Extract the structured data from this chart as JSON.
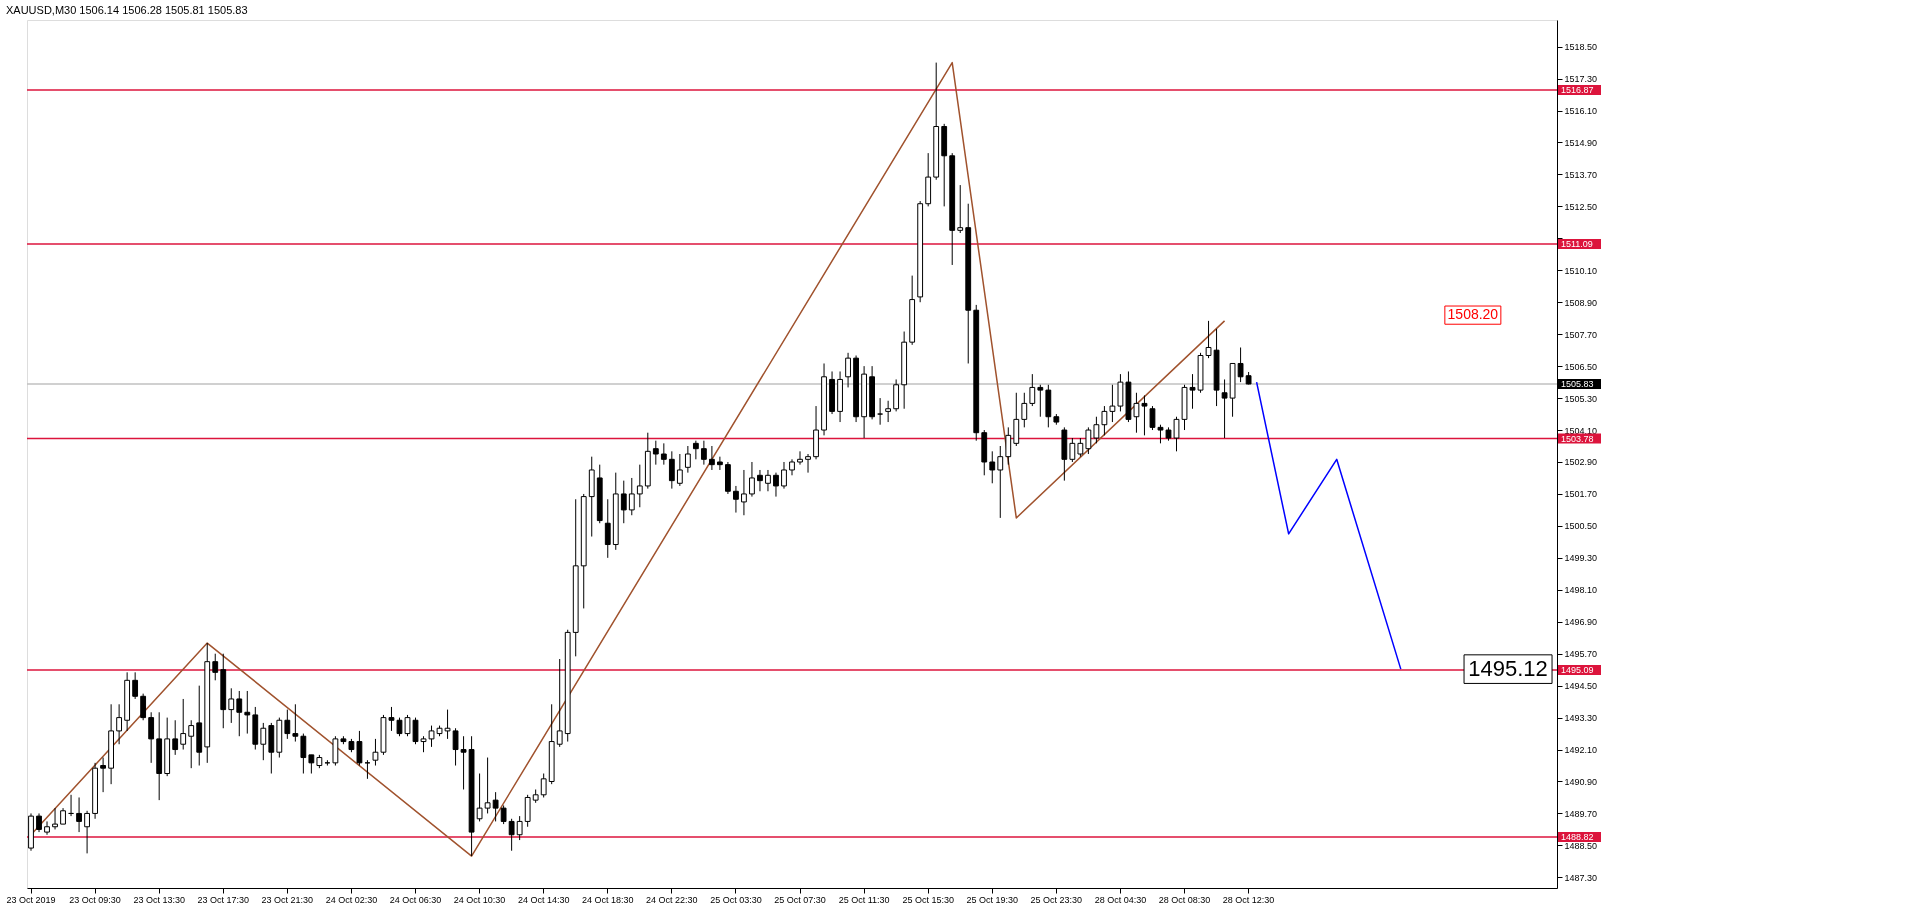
{
  "chart_data": {
    "type": "candlestick",
    "title": "XAUUSD,M30  1506.14 1506.28 1505.81 1505.83",
    "categories": [
      "23 Oct 2019",
      null,
      null,
      null,
      null,
      null,
      null,
      null,
      "23 Oct 09:30",
      null,
      null,
      null,
      null,
      null,
      null,
      null,
      "23 Oct 13:30",
      null,
      null,
      null,
      null,
      null,
      null,
      null,
      "23 Oct 17:30",
      null,
      null,
      null,
      null,
      null,
      null,
      null,
      "23 Oct 21:30",
      null,
      null,
      null,
      null,
      null,
      null,
      null,
      "24 Oct 02:30",
      null,
      null,
      null,
      null,
      null,
      null,
      null,
      "24 Oct 06:30",
      null,
      null,
      null,
      null,
      null,
      null,
      null,
      "24 Oct 10:30",
      null,
      null,
      null,
      null,
      null,
      null,
      null,
      "24 Oct 14:30",
      null,
      null,
      null,
      null,
      null,
      null,
      null,
      "24 Oct 18:30",
      null,
      null,
      null,
      null,
      null,
      null,
      null,
      "24 Oct 22:30",
      null,
      null,
      null,
      null,
      null,
      null,
      null,
      "25 Oct 03:30",
      null,
      null,
      null,
      null,
      null,
      null,
      null,
      "25 Oct 07:30",
      null,
      null,
      null,
      null,
      null,
      null,
      null,
      "25 Oct 11:30",
      null,
      null,
      null,
      null,
      null,
      null,
      null,
      "25 Oct 15:30",
      null,
      null,
      null,
      null,
      null,
      null,
      null,
      "25 Oct 19:30",
      null,
      null,
      null,
      null,
      null,
      null,
      null,
      "25 Oct 23:30",
      null,
      null,
      null,
      null,
      null,
      null,
      null,
      "28 Oct 04:30",
      null,
      null,
      null,
      null,
      null,
      null,
      null,
      "28 Oct 08:30",
      null,
      null,
      null,
      null,
      null,
      null,
      null,
      "28 Oct 12:30",
      null,
      null,
      null,
      null,
      null,
      null,
      null,
      null,
      null,
      null,
      null,
      null,
      null,
      null,
      null,
      null,
      null,
      null,
      null,
      null,
      null,
      null,
      null,
      null,
      null,
      null,
      null,
      null,
      null,
      null,
      null,
      null,
      null,
      null,
      null,
      null,
      null,
      null
    ],
    "ohlc": [
      [
        1488.4,
        1489.7,
        1488.3,
        1489.6
      ],
      [
        1489.6,
        1489.7,
        1489.0,
        1489.1
      ],
      [
        1489.0,
        1489.4,
        1488.9,
        1489.2
      ],
      [
        1489.2,
        1489.9,
        1489.1,
        1489.3
      ],
      [
        1489.3,
        1489.9,
        1489.3,
        1489.8
      ],
      [
        1489.7,
        1490.4,
        1489.6,
        1489.7
      ],
      [
        1489.7,
        1490.3,
        1489.0,
        1489.4
      ],
      [
        1489.2,
        1489.8,
        1488.2,
        1489.7
      ],
      [
        1489.7,
        1491.6,
        1489.5,
        1491.4
      ],
      [
        1491.5,
        1491.8,
        1490.5,
        1491.4
      ],
      [
        1491.4,
        1493.8,
        1490.8,
        1492.8
      ],
      [
        1492.8,
        1493.8,
        1492.3,
        1493.3
      ],
      [
        1493.2,
        1495.0,
        1492.8,
        1494.7
      ],
      [
        1494.7,
        1495.0,
        1494.0,
        1494.1
      ],
      [
        1494.1,
        1494.2,
        1493.2,
        1493.3
      ],
      [
        1493.3,
        1493.5,
        1491.6,
        1492.5
      ],
      [
        1492.5,
        1493.5,
        1490.2,
        1491.2
      ],
      [
        1491.2,
        1493.3,
        1491.1,
        1492.5
      ],
      [
        1492.5,
        1493.2,
        1491.9,
        1492.1
      ],
      [
        1492.3,
        1494.0,
        1492.1,
        1492.7
      ],
      [
        1492.6,
        1493.2,
        1491.4,
        1493.0
      ],
      [
        1493.1,
        1494.5,
        1491.5,
        1492.0
      ],
      [
        1492.2,
        1496.1,
        1491.6,
        1495.4
      ],
      [
        1495.4,
        1495.7,
        1494.7,
        1495.0
      ],
      [
        1495.1,
        1495.7,
        1492.9,
        1493.6
      ],
      [
        1493.6,
        1494.4,
        1493.1,
        1494.0
      ],
      [
        1494.0,
        1494.3,
        1492.6,
        1493.5
      ],
      [
        1493.5,
        1494.3,
        1492.7,
        1493.4
      ],
      [
        1493.4,
        1493.7,
        1492.1,
        1492.3
      ],
      [
        1492.3,
        1493.1,
        1491.7,
        1492.9
      ],
      [
        1493.0,
        1493.1,
        1491.2,
        1492.0
      ],
      [
        1492.0,
        1493.3,
        1491.8,
        1493.2
      ],
      [
        1493.2,
        1493.6,
        1492.5,
        1492.7
      ],
      [
        1492.7,
        1493.8,
        1492.4,
        1492.6
      ],
      [
        1492.6,
        1492.7,
        1491.2,
        1491.8
      ],
      [
        1491.9,
        1491.9,
        1491.2,
        1491.6
      ],
      [
        1491.5,
        1491.9,
        1491.4,
        1491.8
      ],
      [
        1491.6,
        1491.7,
        1491.5,
        1491.6
      ],
      [
        1491.6,
        1492.6,
        1491.5,
        1492.5
      ],
      [
        1492.5,
        1492.6,
        1492.3,
        1492.4
      ],
      [
        1492.4,
        1492.5,
        1492.0,
        1492.1
      ],
      [
        1492.4,
        1492.8,
        1491.5,
        1491.6
      ],
      [
        1491.6,
        1491.7,
        1491.0,
        1491.6
      ],
      [
        1491.7,
        1492.5,
        1491.5,
        1492.0
      ],
      [
        1492.0,
        1493.4,
        1491.9,
        1493.3
      ],
      [
        1493.3,
        1493.7,
        1492.8,
        1493.2
      ],
      [
        1493.2,
        1493.3,
        1492.6,
        1492.7
      ],
      [
        1492.7,
        1493.4,
        1492.6,
        1493.3
      ],
      [
        1493.2,
        1493.3,
        1492.3,
        1492.4
      ],
      [
        1492.4,
        1492.6,
        1492.0,
        1492.5
      ],
      [
        1492.5,
        1493.0,
        1492.2,
        1492.8
      ],
      [
        1492.7,
        1493.0,
        1492.6,
        1492.9
      ],
      [
        1492.8,
        1493.6,
        1492.5,
        1492.9
      ],
      [
        1492.8,
        1492.9,
        1491.5,
        1492.1
      ],
      [
        1492.1,
        1492.6,
        1490.6,
        1492.0
      ],
      [
        1492.1,
        1492.6,
        1488.1,
        1489.0
      ],
      [
        1489.5,
        1491.2,
        1489.4,
        1489.9
      ],
      [
        1489.9,
        1491.8,
        1489.7,
        1490.1
      ],
      [
        1490.2,
        1490.5,
        1489.4,
        1489.9
      ],
      [
        1489.9,
        1490.0,
        1489.3,
        1489.4
      ],
      [
        1489.4,
        1489.5,
        1488.3,
        1488.9
      ],
      [
        1488.9,
        1489.6,
        1488.7,
        1489.4
      ],
      [
        1489.4,
        1490.4,
        1489.2,
        1490.3
      ],
      [
        1490.2,
        1490.6,
        1490.1,
        1490.4
      ],
      [
        1490.4,
        1491.2,
        1490.3,
        1491.0
      ],
      [
        1490.9,
        1493.8,
        1490.8,
        1492.4
      ],
      [
        1492.3,
        1495.5,
        1492.2,
        1492.8
      ],
      [
        1492.7,
        1496.6,
        1492.4,
        1496.5
      ],
      [
        1496.5,
        1501.5,
        1495.6,
        1499.0
      ],
      [
        1499.0,
        1501.7,
        1497.4,
        1501.6
      ],
      [
        1501.6,
        1503.1,
        1500.1,
        1502.6
      ],
      [
        1502.3,
        1502.8,
        1500.6,
        1500.7
      ],
      [
        1500.6,
        1501.5,
        1499.3,
        1499.8
      ],
      [
        1499.8,
        1502.5,
        1499.6,
        1501.7
      ],
      [
        1501.7,
        1502.2,
        1500.6,
        1501.1
      ],
      [
        1501.1,
        1502.3,
        1500.9,
        1501.7
      ],
      [
        1501.7,
        1502.8,
        1501.2,
        1502.0
      ],
      [
        1502.0,
        1504.0,
        1501.9,
        1503.3
      ],
      [
        1503.4,
        1503.7,
        1502.8,
        1503.2
      ],
      [
        1503.2,
        1503.6,
        1502.8,
        1503.0
      ],
      [
        1503.0,
        1503.3,
        1501.9,
        1502.2
      ],
      [
        1502.1,
        1503.2,
        1502.0,
        1502.6
      ],
      [
        1502.7,
        1503.5,
        1502.5,
        1503.2
      ],
      [
        1503.6,
        1503.7,
        1503.0,
        1503.4
      ],
      [
        1503.4,
        1503.7,
        1502.8,
        1503.0
      ],
      [
        1503.0,
        1503.5,
        1502.6,
        1502.8
      ],
      [
        1502.9,
        1503.1,
        1502.6,
        1502.8
      ],
      [
        1502.8,
        1502.9,
        1501.7,
        1501.8
      ],
      [
        1501.8,
        1502.0,
        1501.0,
        1501.5
      ],
      [
        1501.4,
        1502.6,
        1500.9,
        1501.7
      ],
      [
        1501.7,
        1502.9,
        1501.6,
        1502.3
      ],
      [
        1502.4,
        1502.6,
        1501.8,
        1502.2
      ],
      [
        1502.1,
        1502.6,
        1501.8,
        1502.4
      ],
      [
        1502.4,
        1502.5,
        1501.6,
        1502.0
      ],
      [
        1502.0,
        1502.9,
        1501.9,
        1502.6
      ],
      [
        1502.6,
        1503.0,
        1502.4,
        1502.9
      ],
      [
        1502.9,
        1503.3,
        1502.8,
        1503.0
      ],
      [
        1503.0,
        1503.2,
        1502.5,
        1503.1
      ],
      [
        1503.1,
        1505.0,
        1503.0,
        1504.1
      ],
      [
        1504.1,
        1506.6,
        1503.9,
        1506.1
      ],
      [
        1506.0,
        1506.3,
        1504.7,
        1504.8
      ],
      [
        1504.8,
        1506.3,
        1504.4,
        1506.0
      ],
      [
        1506.1,
        1507.0,
        1505.7,
        1506.8
      ],
      [
        1506.8,
        1506.9,
        1504.4,
        1504.6
      ],
      [
        1504.6,
        1506.5,
        1503.8,
        1506.2
      ],
      [
        1506.1,
        1506.5,
        1504.5,
        1504.6
      ],
      [
        1504.7,
        1505.3,
        1504.3,
        1504.7
      ],
      [
        1504.8,
        1505.2,
        1504.4,
        1504.9
      ],
      [
        1504.9,
        1506.0,
        1504.8,
        1505.8
      ],
      [
        1505.8,
        1507.8,
        1504.9,
        1507.4
      ],
      [
        1507.4,
        1509.9,
        1507.3,
        1509.0
      ],
      [
        1509.1,
        1512.7,
        1508.9,
        1512.6
      ],
      [
        1512.6,
        1514.5,
        1512.5,
        1513.6
      ],
      [
        1513.6,
        1517.9,
        1513.5,
        1515.5
      ],
      [
        1515.5,
        1515.6,
        1512.5,
        1514.4
      ],
      [
        1514.4,
        1514.5,
        1510.3,
        1511.6
      ],
      [
        1511.6,
        1513.3,
        1511.5,
        1511.7
      ],
      [
        1511.7,
        1512.6,
        1506.6,
        1508.6
      ],
      [
        1508.6,
        1508.8,
        1503.7,
        1504.0
      ],
      [
        1504.0,
        1504.1,
        1502.4,
        1502.9
      ],
      [
        1502.9,
        1503.3,
        1502.1,
        1502.6
      ],
      [
        1502.6,
        1503.5,
        1500.8,
        1503.1
      ],
      [
        1503.1,
        1504.2,
        1502.8,
        1503.9
      ],
      [
        1503.6,
        1505.5,
        1503.5,
        1504.5
      ],
      [
        1504.5,
        1505.5,
        1504.2,
        1505.1
      ],
      [
        1505.1,
        1506.2,
        1505.0,
        1505.7
      ],
      [
        1505.7,
        1505.8,
        1504.6,
        1505.6
      ],
      [
        1505.6,
        1505.8,
        1504.2,
        1504.6
      ],
      [
        1504.6,
        1504.7,
        1504.3,
        1504.4
      ],
      [
        1504.1,
        1504.2,
        1502.2,
        1503.0
      ],
      [
        1503.0,
        1503.8,
        1502.9,
        1503.6
      ],
      [
        1503.2,
        1503.8,
        1503.1,
        1503.6
      ],
      [
        1503.4,
        1504.2,
        1503.2,
        1504.1
      ],
      [
        1503.8,
        1504.6,
        1503.6,
        1504.3
      ],
      [
        1504.3,
        1505.0,
        1503.9,
        1504.8
      ],
      [
        1504.8,
        1505.8,
        1504.4,
        1505.0
      ],
      [
        1505.0,
        1506.2,
        1504.8,
        1505.9
      ],
      [
        1505.9,
        1506.3,
        1504.4,
        1504.5
      ],
      [
        1504.6,
        1505.5,
        1504.0,
        1505.1
      ],
      [
        1505.1,
        1505.4,
        1503.9,
        1505.0
      ],
      [
        1504.9,
        1505.0,
        1504.1,
        1504.2
      ],
      [
        1504.2,
        1504.3,
        1503.6,
        1504.1
      ],
      [
        1504.1,
        1504.2,
        1503.7,
        1503.8
      ],
      [
        1503.8,
        1504.6,
        1503.3,
        1504.5
      ],
      [
        1504.5,
        1505.8,
        1504.1,
        1505.7
      ],
      [
        1505.7,
        1506.2,
        1504.9,
        1505.6
      ],
      [
        1505.6,
        1507.0,
        1505.5,
        1506.9
      ],
      [
        1506.9,
        1508.2,
        1506.8,
        1507.2
      ],
      [
        1507.1,
        1507.9,
        1505.0,
        1505.6
      ],
      [
        1505.5,
        1506.0,
        1503.8,
        1505.3
      ],
      [
        1505.3,
        1506.6,
        1504.6,
        1506.6
      ],
      [
        1506.6,
        1507.2,
        1505.9,
        1506.1
      ],
      [
        1506.14,
        1506.28,
        1505.81,
        1505.83
      ],
      null,
      null,
      null,
      null,
      null,
      null,
      null,
      null,
      null,
      null,
      null,
      null,
      null,
      null,
      null,
      null,
      null,
      null,
      null,
      null,
      null,
      null,
      null,
      null,
      null,
      null,
      null,
      null,
      null,
      null,
      null,
      null,
      null,
      null,
      null,
      null,
      null,
      null
    ],
    "series": [
      {
        "type": "line",
        "color": "#a0522d",
        "values": [
          1488.9,
          null,
          null,
          null,
          null,
          null,
          null,
          null,
          null,
          null,
          null,
          null,
          null,
          null,
          null,
          null,
          null,
          null,
          null,
          null,
          null,
          null,
          1496.1,
          null,
          null,
          null,
          null,
          null,
          null,
          null,
          null,
          null,
          null,
          null,
          null,
          null,
          null,
          null,
          null,
          null,
          null,
          null,
          null,
          null,
          null,
          null,
          null,
          null,
          null,
          null,
          null,
          null,
          null,
          null,
          null,
          1488.1,
          null,
          null,
          null,
          null,
          null,
          null,
          null,
          null,
          null,
          null,
          null,
          null,
          null,
          null,
          null,
          null,
          null,
          null,
          null,
          null,
          null,
          null,
          null,
          null,
          null,
          null,
          null,
          null,
          null,
          null,
          null,
          null,
          null,
          null,
          null,
          null,
          null,
          null,
          null,
          null,
          null,
          null,
          null,
          null,
          null,
          null,
          null,
          null,
          null,
          null,
          null,
          null,
          null,
          null,
          null,
          null,
          null,
          null,
          null,
          1517.9,
          null,
          null,
          null,
          null,
          null,
          null,
          null,
          1500.8,
          null,
          null,
          null,
          null,
          null,
          null,
          null,
          null,
          null,
          null,
          null,
          null,
          null,
          null,
          null,
          null,
          null,
          null,
          null,
          null,
          null,
          null,
          null,
          null,
          null,
          1508.2,
          null,
          null,
          null,
          null,
          null,
          null,
          null,
          null,
          null,
          null,
          null,
          null,
          null,
          null,
          null,
          null,
          null,
          null,
          null,
          null,
          null,
          null,
          null,
          null,
          null,
          null,
          null,
          null,
          null,
          null,
          null,
          null,
          null,
          null,
          null,
          null,
          null,
          null,
          null,
          null,
          null
        ]
      },
      {
        "type": "line",
        "color": "#0000ff",
        "values": [
          null,
          null,
          null,
          null,
          null,
          null,
          null,
          null,
          null,
          null,
          null,
          null,
          null,
          null,
          null,
          null,
          null,
          null,
          null,
          null,
          null,
          null,
          null,
          null,
          null,
          null,
          null,
          null,
          null,
          null,
          null,
          null,
          null,
          null,
          null,
          null,
          null,
          null,
          null,
          null,
          null,
          null,
          null,
          null,
          null,
          null,
          null,
          null,
          null,
          null,
          null,
          null,
          null,
          null,
          null,
          null,
          null,
          null,
          null,
          null,
          null,
          null,
          null,
          null,
          null,
          null,
          null,
          null,
          null,
          null,
          null,
          null,
          null,
          null,
          null,
          null,
          null,
          null,
          null,
          null,
          null,
          null,
          null,
          null,
          null,
          null,
          null,
          null,
          null,
          null,
          null,
          null,
          null,
          null,
          null,
          null,
          null,
          null,
          null,
          null,
          null,
          null,
          null,
          null,
          null,
          null,
          null,
          null,
          null,
          null,
          null,
          null,
          null,
          null,
          null,
          null,
          null,
          null,
          null,
          null,
          null,
          null,
          null,
          null,
          null,
          null,
          null,
          null,
          null,
          null,
          null,
          null,
          null,
          null,
          null,
          null,
          null,
          null,
          null,
          null,
          null,
          null,
          null,
          null,
          null,
          null,
          null,
          null,
          null,
          null,
          null,
          null,
          null,
          1505.9,
          null,
          null,
          null,
          1500.2,
          null,
          null,
          null,
          null,
          null,
          1503.0,
          null,
          null,
          null,
          null,
          null,
          null,
          null,
          1495.12,
          null,
          null,
          null,
          null,
          null,
          null,
          null,
          null,
          null,
          null,
          null,
          null,
          null,
          null,
          null,
          null,
          null,
          null,
          null
        ]
      }
    ],
    "ylim": [
      1486.9,
      1519.5
    ],
    "yticks": [
      {
        "value": 1487.3,
        "label": "1487.30"
      },
      {
        "value": 1488.5,
        "label": "1488.50"
      },
      {
        "value": 1489.7,
        "label": "1489.70"
      },
      {
        "value": 1490.9,
        "label": "1490.90"
      },
      {
        "value": 1492.1,
        "label": "1492.10"
      },
      {
        "value": 1493.3,
        "label": "1493.30"
      },
      {
        "value": 1494.5,
        "label": "1494.50"
      },
      {
        "value": 1495.7,
        "label": "1495.70"
      },
      {
        "value": 1496.9,
        "label": "1496.90"
      },
      {
        "value": 1498.1,
        "label": "1498.10"
      },
      {
        "value": 1499.3,
        "label": "1499.30"
      },
      {
        "value": 1500.5,
        "label": "1500.50"
      },
      {
        "value": 1501.7,
        "label": "1501.70"
      },
      {
        "value": 1502.9,
        "label": "1502.90"
      },
      {
        "value": 1504.1,
        "label": "1504.10"
      },
      {
        "value": 1505.3,
        "label": "1505.30"
      },
      {
        "value": 1506.5,
        "label": "1506.50"
      },
      {
        "value": 1507.7,
        "label": "1507.70"
      },
      {
        "value": 1508.9,
        "label": "1508.90"
      },
      {
        "value": 1510.1,
        "label": "1510.10"
      },
      {
        "value": 1511.3,
        "label": null
      },
      {
        "value": 1512.5,
        "label": "1512.50"
      },
      {
        "value": 1513.7,
        "label": "1513.70"
      },
      {
        "value": 1514.9,
        "label": "1514.90"
      },
      {
        "value": 1516.1,
        "label": "1516.10"
      },
      {
        "value": 1517.3,
        "label": "1517.30"
      },
      {
        "value": 1518.5,
        "label": "1518.50"
      }
    ],
    "ref_lines": [
      {
        "axis": "y",
        "value": 1516.87,
        "label": "1516.87",
        "color": "#dc143c"
      },
      {
        "axis": "y",
        "value": 1511.09,
        "label": "1511.09",
        "color": "#dc143c"
      },
      {
        "axis": "y",
        "value": 1503.78,
        "label": "1503.78",
        "color": "#dc143c"
      },
      {
        "axis": "y",
        "value": 1495.09,
        "label": "1495.09",
        "color": "#dc143c"
      },
      {
        "axis": "y",
        "value": 1488.82,
        "label": "1488.82",
        "color": "#dc143c"
      },
      {
        "axis": "y",
        "value": 1505.83,
        "label": "1505.83",
        "color": "#c0c0c0"
      }
    ],
    "annotations": [
      "1508.20",
      {
        "text": "1495.12",
        "y": 1495.12
      }
    ],
    "grid": false
  }
}
